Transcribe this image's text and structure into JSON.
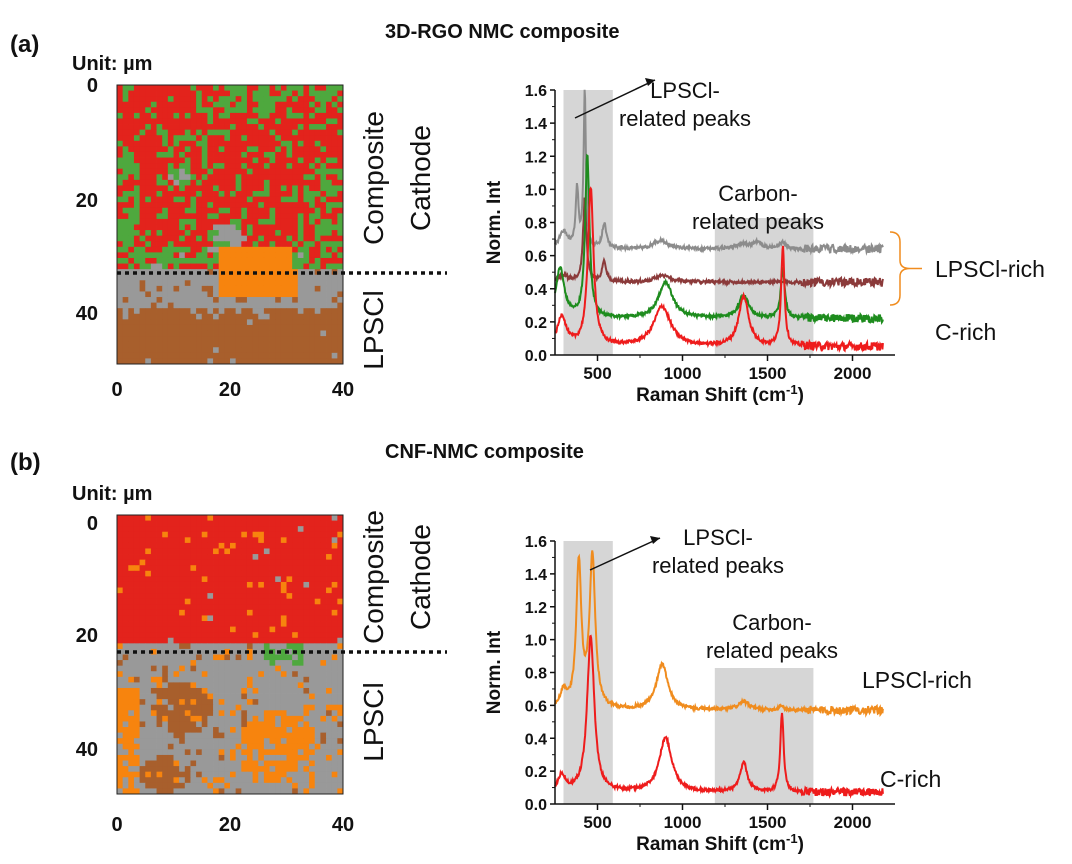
{
  "colors": {
    "red": "#e3231c",
    "green": "#4ea83e",
    "gray": "#999999",
    "orange": "#f7840e",
    "brown": "#a85f2c",
    "spec_gray": "#8c8c8c",
    "spec_darkred": "#8b3a3a",
    "spec_green": "#1e8c1e",
    "spec_red": "#ee1c1c",
    "spec_orange": "#f08c1e",
    "band": "#d6d6d6"
  },
  "panels": [
    {
      "label": "(a)",
      "title": "3D-RGO NMC composite",
      "unit": "Unit: µm",
      "map": {
        "x_ticks": [
          "0",
          "20",
          "40"
        ],
        "y_ticks": [
          "0",
          "20",
          "40"
        ],
        "xlim": [
          0,
          40
        ],
        "ylim": [
          0,
          50
        ],
        "boundary_um": 33.5,
        "region_top": "Composite Cathode",
        "region_bottom": "LPSCl"
      },
      "spectra": {
        "ylabel": "Norm. Int",
        "xlabel": "Raman Shift (cm",
        "xlabel_sup": "-1",
        "xlabel_end": ")",
        "xlim": [
          250,
          2250
        ],
        "ylim": [
          0,
          1.6
        ],
        "x_ticks": [
          500,
          1000,
          1500,
          2000
        ],
        "y_ticks": [
          0.0,
          0.2,
          0.4,
          0.6,
          0.8,
          1.0,
          1.2,
          1.4,
          1.6
        ],
        "bands": [
          [
            300,
            590
          ],
          [
            1190,
            1770
          ]
        ],
        "ann1": [
          "LPSCl-",
          "related peaks"
        ],
        "ann2": [
          "Carbon-",
          "related peaks"
        ],
        "legend": [
          "LPSCl-rich",
          "C-rich"
        ]
      }
    },
    {
      "label": "(b)",
      "title": "CNF-NMC composite",
      "unit": "Unit: µm",
      "map": {
        "x_ticks": [
          "0",
          "20",
          "40"
        ],
        "y_ticks": [
          "0",
          "20",
          "40"
        ],
        "xlim": [
          0,
          40
        ],
        "ylim": [
          0,
          50
        ],
        "boundary_um": 23.5,
        "region_top": "Composite Cathode",
        "region_bottom": "LPSCl"
      },
      "spectra": {
        "ylabel": "Norm. Int",
        "xlabel": "Raman Shift (cm",
        "xlabel_sup": "-1",
        "xlabel_end": ")",
        "xlim": [
          250,
          2250
        ],
        "ylim": [
          0,
          1.6
        ],
        "x_ticks": [
          500,
          1000,
          1500,
          2000
        ],
        "y_ticks": [
          0.0,
          0.2,
          0.4,
          0.6,
          0.8,
          1.0,
          1.2,
          1.4,
          1.6
        ],
        "bands": [
          [
            300,
            590
          ],
          [
            1190,
            1770
          ]
        ],
        "ann1": [
          "LPSCl-",
          "related peaks"
        ],
        "ann2": [
          "Carbon-",
          "related peaks"
        ],
        "legend": [
          "LPSCl-rich",
          "C-rich"
        ]
      }
    }
  ],
  "chart_data": [
    {
      "type": "heatmap",
      "title": "3D-RGO NMC composite",
      "xlabel": "",
      "ylabel": "",
      "xlim": [
        0,
        40
      ],
      "ylim": [
        0,
        50
      ],
      "regions": [
        {
          "class": "red",
          "y_range": [
            0,
            33
          ]
        },
        {
          "class": "green",
          "y_range": [
            0,
            33
          ]
        },
        {
          "class": "orange",
          "x_range": [
            18,
            32
          ],
          "y_range": [
            28,
            38
          ]
        },
        {
          "class": "gray",
          "y_range": [
            33,
            40
          ]
        },
        {
          "class": "brown",
          "y_range": [
            40,
            50
          ]
        }
      ]
    },
    {
      "type": "line",
      "title": "3D-RGO NMC composite",
      "xlabel": "Raman Shift (cm-1)",
      "ylabel": "Norm. Int",
      "xlim": [
        250,
        2250
      ],
      "ylim": [
        0,
        1.6
      ],
      "series": [
        {
          "color": "gray",
          "offset": 0.64,
          "peaks": [
            [
              300,
              0.1,
              30
            ],
            [
              380,
              0.35,
              10
            ],
            [
              425,
              0.95,
              8
            ],
            [
              540,
              0.15,
              15
            ],
            [
              870,
              0.05,
              50
            ],
            [
              1350,
              0.03,
              40
            ],
            [
              1440,
              0.04,
              30
            ],
            [
              1590,
              0.04,
              20
            ]
          ]
        },
        {
          "color": "darkred",
          "offset": 0.44,
          "peaks": [
            [
              300,
              0.04,
              30
            ],
            [
              425,
              0.5,
              12
            ],
            [
              540,
              0.12,
              15
            ],
            [
              880,
              0.04,
              50
            ]
          ]
        },
        {
          "color": "green",
          "offset": 0.22,
          "peaks": [
            [
              280,
              0.3,
              30
            ],
            [
              440,
              0.98,
              15
            ],
            [
              900,
              0.22,
              50
            ],
            [
              1360,
              0.14,
              35
            ],
            [
              1590,
              0.3,
              14
            ]
          ]
        },
        {
          "color": "red",
          "offset": 0.05,
          "peaks": [
            [
              290,
              0.18,
              30
            ],
            [
              460,
              0.95,
              20
            ],
            [
              880,
              0.24,
              60
            ],
            [
              1360,
              0.3,
              35
            ],
            [
              1590,
              0.6,
              12
            ]
          ]
        }
      ]
    },
    {
      "type": "heatmap",
      "title": "CNF-NMC composite",
      "xlabel": "",
      "ylabel": "",
      "xlim": [
        0,
        40
      ],
      "ylim": [
        0,
        50
      ],
      "regions": [
        {
          "class": "red",
          "y_range": [
            0,
            23
          ]
        },
        {
          "class": "gray",
          "y_range": [
            23,
            50
          ]
        },
        {
          "class": "green",
          "x_range": [
            26,
            32
          ],
          "y_range": [
            22,
            27
          ]
        },
        {
          "class": "orange",
          "y_range": [
            28,
            50
          ]
        },
        {
          "class": "brown",
          "y_range": [
            30,
            50
          ]
        }
      ]
    },
    {
      "type": "line",
      "title": "CNF-NMC composite",
      "xlabel": "Raman Shift (cm-1)",
      "ylabel": "Norm. Int",
      "xlim": [
        250,
        2250
      ],
      "ylim": [
        0,
        1.6
      ],
      "series": [
        {
          "name": "LPSCl-rich",
          "color": "orange",
          "offset": 0.57,
          "peaks": [
            [
              300,
              0.1,
              25
            ],
            [
              390,
              0.88,
              18
            ],
            [
              470,
              0.92,
              20
            ],
            [
              880,
              0.28,
              40
            ],
            [
              1360,
              0.05,
              40
            ],
            [
              1580,
              0.03,
              15
            ]
          ]
        },
        {
          "name": "C-rich",
          "color": "red",
          "offset": 0.07,
          "peaks": [
            [
              290,
              0.1,
              25
            ],
            [
              460,
              0.95,
              25
            ],
            [
              900,
              0.33,
              45
            ],
            [
              1360,
              0.18,
              25
            ],
            [
              1585,
              0.48,
              12
            ]
          ]
        }
      ]
    }
  ]
}
